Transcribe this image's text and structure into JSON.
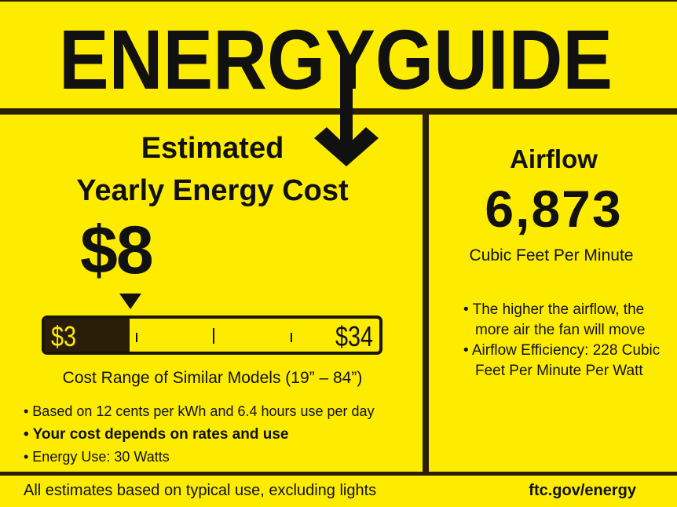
{
  "header": {
    "title": "ENERGYGUIDE"
  },
  "cost": {
    "heading_line1": "Estimated",
    "heading_line2": "Yearly Energy Cost",
    "value": "$8",
    "range_low": "$3",
    "range_high": "$34",
    "position_fraction": 0.16,
    "range_caption": "Cost Range of Similar Models (19” – 84”)"
  },
  "notes": [
    "• Based on 12 cents per kWh and 6.4 hours use per day",
    "• Your cost depends on rates and use",
    "• Energy Use: 30 Watts"
  ],
  "airflow": {
    "heading": "Airflow",
    "value": "6,873",
    "unit": "Cubic Feet Per Minute",
    "bullet1_line1": "• The higher the airflow, the",
    "bullet1_line2": "more air the fan will move",
    "bullet2_line1": "• Airflow Efficiency: 228 Cubic",
    "bullet2_line2": "Feet Per Minute Per Watt"
  },
  "footer": {
    "left": "All estimates based on typical use, excluding lights",
    "right": "ftc.gov/energy"
  },
  "colors": {
    "background": "#fdec00",
    "ink": "#1b1408"
  }
}
